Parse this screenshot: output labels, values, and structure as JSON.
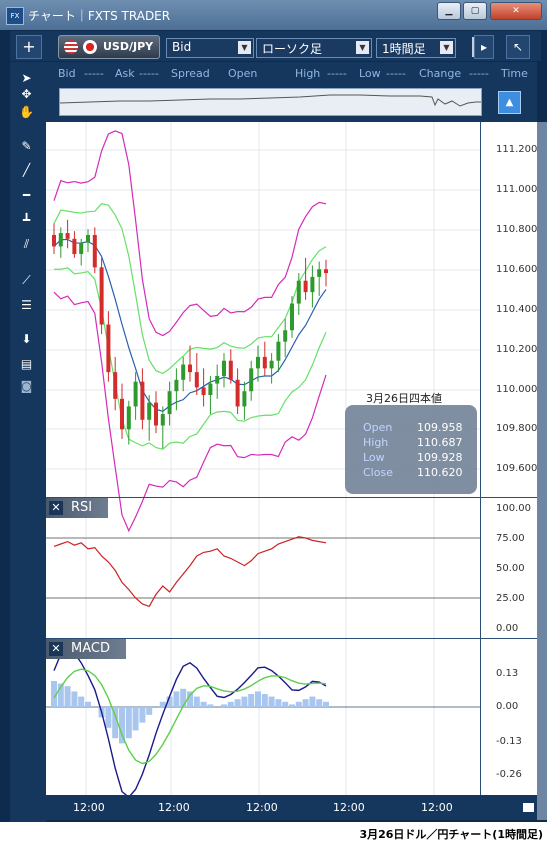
{
  "window": {
    "title": "チャート｜FXTS TRADER",
    "app_icon": "FX",
    "buttons": [
      "minimize-icon",
      "maximize-icon",
      "close-icon"
    ]
  },
  "toolbar": {
    "add_icon": "+",
    "symbol": "USD/JPY",
    "price_type": "Bid",
    "chart_type": "ローソク足",
    "timeframe": "1時間足",
    "right_icons": [
      "collapse-right-icon",
      "popout-icon"
    ]
  },
  "quotes": {
    "labels": [
      "Bid",
      "-----",
      "Ask",
      "-----",
      "Spread",
      "Open",
      "High",
      "-----",
      "Low",
      "-----",
      "Change",
      "-----",
      "Time"
    ]
  },
  "side_tools": [
    "cursor-icon",
    "crosshair-icon",
    "hand-icon",
    "pen-icon",
    "trendline-icon",
    "hline-icon",
    "vline-icon",
    "channel-icon",
    "fan-icon",
    "fib-icon",
    "download-icon",
    "list-icon",
    "camera-icon"
  ],
  "colors": {
    "candle_up": "#2e9a2e",
    "candle_down": "#d42b2b",
    "bb_outer": "#d42bb8",
    "bb_inner": "#66e066",
    "bb_mid": "#2a5fb0",
    "rsi_line": "#cc2222",
    "macd_line": "#1a1a8a",
    "signal_line": "#5ecf4a",
    "hist": "#a9c6ee"
  },
  "ohlc_panel": {
    "title": "3月26日四本値",
    "rows": [
      {
        "label": "Open",
        "value": "109.958"
      },
      {
        "label": "High",
        "value": "110.687"
      },
      {
        "label": "Low",
        "value": "109.928"
      },
      {
        "label": "Close",
        "value": "110.620"
      }
    ]
  },
  "price_axis": [
    "111.200",
    "111.000",
    "110.800",
    "110.600",
    "110.400",
    "110.200",
    "110.000",
    "109.800",
    "109.600"
  ],
  "rsi": {
    "label": "RSI",
    "axis": [
      "100.00",
      "75.00",
      "50.00",
      "25.00",
      "0.00"
    ]
  },
  "macd": {
    "label": "MACD",
    "axis": [
      "0.13",
      "0.00",
      "-0.13",
      "-0.26"
    ]
  },
  "time_axis": [
    "12:00",
    "12:00",
    "12:00",
    "12:00",
    "12:00"
  ],
  "caption": "3月26日ドル／円チャート(1時間足)",
  "chart_data": {
    "type": "candlestick",
    "price_range": [
      109.45,
      111.35
    ],
    "candles": [
      [
        110.82,
        110.88,
        110.72,
        110.76
      ],
      [
        110.76,
        110.86,
        110.7,
        110.83
      ],
      [
        110.83,
        110.9,
        110.75,
        110.8
      ],
      [
        110.8,
        110.84,
        110.7,
        110.72
      ],
      [
        110.72,
        110.8,
        110.66,
        110.78
      ],
      [
        110.78,
        110.85,
        110.73,
        110.82
      ],
      [
        110.82,
        110.86,
        110.62,
        110.65
      ],
      [
        110.65,
        110.7,
        110.3,
        110.35
      ],
      [
        110.35,
        110.42,
        110.05,
        110.1
      ],
      [
        110.1,
        110.18,
        109.9,
        109.96
      ],
      [
        109.96,
        110.04,
        109.75,
        109.8
      ],
      [
        109.8,
        109.95,
        109.72,
        109.92
      ],
      [
        109.92,
        110.1,
        109.85,
        110.05
      ],
      [
        110.05,
        110.12,
        109.8,
        109.85
      ],
      [
        109.85,
        109.98,
        109.74,
        109.94
      ],
      [
        109.94,
        110.0,
        109.78,
        109.82
      ],
      [
        109.82,
        109.92,
        109.7,
        109.88
      ],
      [
        109.88,
        110.05,
        109.82,
        110.0
      ],
      [
        110.0,
        110.12,
        109.9,
        110.06
      ],
      [
        110.06,
        110.18,
        110.0,
        110.14
      ],
      [
        110.14,
        110.24,
        110.05,
        110.1
      ],
      [
        110.1,
        110.2,
        109.98,
        110.02
      ],
      [
        110.02,
        110.12,
        109.92,
        109.98
      ],
      [
        109.98,
        110.08,
        109.88,
        110.04
      ],
      [
        110.04,
        110.14,
        109.96,
        110.08
      ],
      [
        110.08,
        110.2,
        110.02,
        110.16
      ],
      [
        110.16,
        110.22,
        110.04,
        110.06
      ],
      [
        110.06,
        110.12,
        109.88,
        109.92
      ],
      [
        109.92,
        110.05,
        109.85,
        110.0
      ],
      [
        110.0,
        110.16,
        109.95,
        110.12
      ],
      [
        110.12,
        110.24,
        110.05,
        110.18
      ],
      [
        110.18,
        110.26,
        110.08,
        110.12
      ],
      [
        110.12,
        110.2,
        110.04,
        110.16
      ],
      [
        110.16,
        110.3,
        110.1,
        110.26
      ],
      [
        110.26,
        110.38,
        110.18,
        110.32
      ],
      [
        110.32,
        110.5,
        110.28,
        110.46
      ],
      [
        110.46,
        110.62,
        110.4,
        110.58
      ],
      [
        110.58,
        110.7,
        110.48,
        110.52
      ],
      [
        110.52,
        110.66,
        110.44,
        110.6
      ],
      [
        110.6,
        110.68,
        110.5,
        110.64
      ],
      [
        110.64,
        110.69,
        110.55,
        110.62
      ]
    ],
    "rsi_values": [
      68,
      70,
      72,
      69,
      71,
      66,
      67,
      60,
      55,
      48,
      38,
      32,
      25,
      20,
      18,
      28,
      35,
      30,
      38,
      45,
      52,
      60,
      63,
      64,
      66,
      60,
      58,
      55,
      52,
      56,
      62,
      64,
      66,
      70,
      72,
      74,
      76,
      75,
      73,
      72,
      71
    ],
    "macd_hist": [
      0.1,
      0.09,
      0.08,
      0.06,
      0.04,
      0.02,
      0.0,
      -0.04,
      -0.08,
      -0.12,
      -0.14,
      -0.12,
      -0.09,
      -0.06,
      -0.03,
      0.0,
      0.02,
      0.04,
      0.06,
      0.07,
      0.06,
      0.04,
      0.02,
      0.01,
      0.0,
      0.01,
      0.02,
      0.03,
      0.04,
      0.05,
      0.06,
      0.05,
      0.04,
      0.03,
      0.02,
      0.01,
      0.02,
      0.03,
      0.04,
      0.03,
      0.02
    ]
  }
}
